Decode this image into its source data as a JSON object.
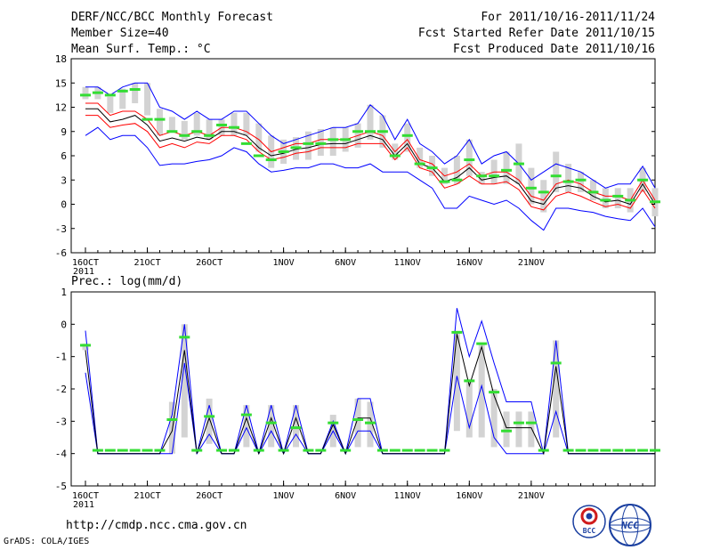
{
  "header": {
    "title": "DERF/NCC/BCC Monthly Forecast",
    "member_size": "Member Size=40",
    "variable": "Mean Surf. Temp.: °C",
    "forecast_period": "For 2011/10/16-2011/11/24",
    "fcst_started": "Fcst Started Refer Date 2011/10/15",
    "fcst_produced": "Fcst Produced Date 2011/10/16"
  },
  "precip_label": "Prec.: log(mm/d)",
  "footer": {
    "url": "http://cmdp.ncc.cma.gov.cn",
    "grads": "GrADS: COLA/IGES",
    "logo1_text": "BCC",
    "logo2_text": "NCC"
  },
  "colors": {
    "outer": "#0000ff",
    "inner": "#ff0000",
    "mean": "#000000",
    "obs": "#33dd33",
    "box": "#d3d3d3"
  },
  "chart_data": [
    {
      "type": "line",
      "title": "Mean Surf. Temp.: °C",
      "x_start_day": 16,
      "x_ticks": [
        "16OCT",
        "21OCT",
        "26OCT",
        "1NOV",
        "6NOV",
        "11NOV",
        "16NOV",
        "21NOV"
      ],
      "x_tick_days": [
        16,
        21,
        26,
        32,
        37,
        42,
        47,
        52
      ],
      "year_label": "2011",
      "ylim": [
        -6,
        18
      ],
      "y_ticks": [
        -6,
        -3,
        0,
        3,
        6,
        9,
        12,
        15,
        18
      ],
      "series": [
        {
          "name": "upper",
          "values": [
            14.5,
            14.5,
            13.5,
            14.5,
            15.0,
            15.0,
            12.0,
            11.5,
            10.5,
            11.5,
            10.5,
            10.5,
            11.5,
            11.5,
            10.0,
            8.5,
            7.5,
            8.0,
            8.5,
            9.0,
            9.5,
            9.5,
            10.0,
            12.3,
            11.0,
            8.0,
            10.5,
            7.5,
            6.5,
            5.0,
            6.0,
            8.0,
            5.0,
            6.0,
            6.5,
            5.0,
            3.0,
            4.0,
            5.0,
            4.5,
            4.0,
            3.0,
            2.0,
            2.5,
            2.5,
            4.7,
            2.0
          ]
        },
        {
          "name": "inner_upper",
          "values": [
            12.5,
            12.5,
            11.0,
            11.5,
            11.5,
            10.5,
            8.5,
            9.0,
            8.5,
            9.0,
            8.5,
            9.5,
            9.5,
            9.0,
            8.0,
            6.5,
            7.0,
            7.5,
            7.5,
            8.0,
            8.0,
            8.0,
            8.5,
            9.0,
            8.5,
            6.5,
            8.0,
            5.5,
            5.0,
            3.5,
            4.0,
            5.0,
            3.5,
            4.0,
            4.0,
            3.0,
            1.0,
            0.5,
            2.5,
            3.0,
            2.5,
            1.5,
            1.0,
            1.0,
            0.5,
            3.0,
            0.5
          ]
        },
        {
          "name": "mean",
          "values": [
            11.8,
            11.8,
            10.2,
            10.5,
            11.0,
            9.8,
            7.8,
            8.2,
            7.8,
            8.3,
            8.0,
            9.0,
            9.0,
            8.5,
            7.0,
            6.0,
            6.3,
            6.8,
            7.0,
            7.4,
            7.5,
            7.5,
            8.0,
            8.5,
            8.0,
            6.0,
            7.5,
            5.0,
            4.5,
            2.8,
            3.3,
            4.5,
            3.0,
            3.3,
            3.5,
            2.5,
            0.4,
            0.0,
            2.0,
            2.3,
            2.0,
            1.0,
            0.3,
            0.5,
            0.0,
            2.5,
            0.0
          ]
        },
        {
          "name": "inner_lower",
          "values": [
            11.0,
            11.0,
            9.5,
            9.8,
            10.0,
            9.0,
            7.0,
            7.5,
            7.0,
            7.7,
            7.5,
            8.5,
            8.5,
            8.0,
            6.5,
            5.5,
            5.8,
            6.3,
            6.5,
            7.0,
            7.0,
            7.0,
            7.5,
            7.5,
            7.5,
            5.5,
            7.0,
            4.5,
            4.0,
            2.0,
            2.5,
            3.5,
            2.5,
            2.5,
            2.8,
            1.8,
            -0.3,
            -0.7,
            1.0,
            1.5,
            1.0,
            0.3,
            -0.3,
            0.0,
            -0.5,
            1.8,
            -0.5
          ]
        },
        {
          "name": "lower",
          "values": [
            8.5,
            9.5,
            8.0,
            8.5,
            8.5,
            7.0,
            4.8,
            5.0,
            5.0,
            5.3,
            5.5,
            6.0,
            7.0,
            6.5,
            5.0,
            4.0,
            4.2,
            4.5,
            4.5,
            5.0,
            5.0,
            4.5,
            4.5,
            5.0,
            4.0,
            4.0,
            4.0,
            3.0,
            2.0,
            -0.5,
            -0.5,
            1.0,
            0.5,
            0.0,
            0.5,
            -0.5,
            -2.0,
            -3.2,
            -0.5,
            -0.5,
            -0.8,
            -1.0,
            -1.5,
            -1.8,
            -2.0,
            -0.5,
            -2.8
          ]
        },
        {
          "name": "box_top",
          "values": [
            14.5,
            14.5,
            13.3,
            14.3,
            15.0,
            15.0,
            11.8,
            10.8,
            10.3,
            11.3,
            10.5,
            10.5,
            11.3,
            11.3,
            10.0,
            8.5,
            8.0,
            8.3,
            9.0,
            9.3,
            9.5,
            9.5,
            10.0,
            12.3,
            11.0,
            7.5,
            10.0,
            7.0,
            6.0,
            4.5,
            6.0,
            8.0,
            4.0,
            5.5,
            6.5,
            7.5,
            4.5,
            3.0,
            6.5,
            5.0,
            4.0,
            3.0,
            2.0,
            2.0,
            2.0,
            4.5,
            2.0
          ]
        },
        {
          "name": "box_bottom",
          "values": [
            13.0,
            13.0,
            11.3,
            11.8,
            12.5,
            11.0,
            8.5,
            9.0,
            8.0,
            8.5,
            8.0,
            8.5,
            8.5,
            8.5,
            6.5,
            4.5,
            5.0,
            5.5,
            5.5,
            6.0,
            6.0,
            6.5,
            7.0,
            8.0,
            7.0,
            5.5,
            6.5,
            4.5,
            3.5,
            2.5,
            2.5,
            3.5,
            2.5,
            2.5,
            2.5,
            2.5,
            0.0,
            -1.0,
            1.5,
            1.5,
            1.5,
            0.5,
            -0.5,
            -0.5,
            -1.0,
            1.5,
            -1.5
          ]
        },
        {
          "name": "observed",
          "values": [
            13.5,
            13.8,
            13.5,
            14.0,
            14.2,
            10.5,
            10.5,
            9.0,
            8.5,
            9.0,
            8.5,
            9.8,
            9.5,
            7.5,
            6.0,
            5.5,
            6.5,
            7.0,
            7.5,
            7.5,
            8.0,
            8.0,
            9.0,
            9.0,
            9.0,
            6.0,
            8.5,
            5.0,
            4.5,
            2.8,
            3.0,
            5.5,
            3.5,
            3.5,
            4.2,
            5.0,
            2.0,
            1.5,
            3.5,
            2.8,
            3.0,
            1.5,
            0.5,
            1.0,
            0.5,
            3.0,
            0.3
          ]
        }
      ]
    },
    {
      "type": "line",
      "title": "Prec.: log(mm/d)",
      "x_start_day": 16,
      "x_ticks": [
        "16OCT",
        "21OCT",
        "26OCT",
        "1NOV",
        "6NOV",
        "11NOV",
        "16NOV",
        "21NOV"
      ],
      "x_tick_days": [
        16,
        21,
        26,
        32,
        37,
        42,
        47,
        52
      ],
      "year_label": "2011",
      "ylim": [
        -5,
        1
      ],
      "y_ticks": [
        -5,
        -4,
        -3,
        -2,
        -1,
        0,
        1
      ],
      "series": [
        {
          "name": "upper",
          "values": [
            -0.2,
            -4,
            -4,
            -4,
            -4,
            -4,
            -4,
            -2.8,
            0.0,
            -4,
            -2.5,
            -4,
            -4,
            -2.5,
            -4,
            -2.5,
            -4,
            -2.5,
            -4,
            -4,
            -3.0,
            -4,
            -2.3,
            -2.3,
            -4,
            -4,
            -4,
            -4,
            -4,
            -4,
            0.5,
            -1.0,
            0.1,
            -1.2,
            -2.4,
            -2.4,
            -2.4,
            -4,
            -0.5,
            -4,
            -4,
            -4,
            -4,
            -4,
            -4,
            -4,
            -4
          ]
        },
        {
          "name": "mean",
          "values": [
            -0.8,
            -4,
            -4,
            -4,
            -4,
            -4,
            -4,
            -3.3,
            -0.8,
            -4,
            -2.9,
            -4,
            -4,
            -2.9,
            -4,
            -2.9,
            -4,
            -2.9,
            -4,
            -4,
            -3.1,
            -4,
            -2.9,
            -2.9,
            -4,
            -4,
            -4,
            -4,
            -4,
            -4,
            -0.3,
            -1.9,
            -0.7,
            -2.2,
            -3.2,
            -3.2,
            -3.2,
            -4,
            -1.3,
            -4,
            -4,
            -4,
            -4,
            -4,
            -4,
            -4,
            -4
          ]
        },
        {
          "name": "lower",
          "values": [
            -1.5,
            -4,
            -4,
            -4,
            -4,
            -4,
            -4,
            -4.0,
            -1.2,
            -4,
            -3.4,
            -4,
            -4,
            -3.2,
            -4,
            -3.3,
            -4,
            -3.4,
            -4,
            -4,
            -3.3,
            -4,
            -3.3,
            -3.3,
            -4,
            -4,
            -4,
            -4,
            -4,
            -4,
            -1.6,
            -3.2,
            -1.9,
            -3.5,
            -4,
            -4,
            -4,
            -4,
            -2.7,
            -4,
            -4,
            -4,
            -4,
            -4,
            -4,
            -4,
            -4
          ]
        },
        {
          "name": "box_top",
          "values": [
            -0.6,
            -4,
            -4,
            -4,
            -4,
            -4,
            -4,
            -2.4,
            0.0,
            -4,
            -2.3,
            -4,
            -4,
            -2.5,
            -4,
            -2.5,
            -4,
            -2.5,
            -4,
            -4,
            -2.8,
            -4,
            -2.3,
            -2.4,
            -4,
            -4,
            -4,
            -4,
            -4,
            -4,
            -0.2,
            -1.7,
            -0.6,
            -2.0,
            -2.7,
            -2.7,
            -2.7,
            -4,
            -0.5,
            -4,
            -4,
            -4,
            -4,
            -4,
            -4,
            -4,
            -4
          ]
        },
        {
          "name": "box_bottom",
          "values": [
            -0.8,
            -4,
            -4,
            -4,
            -4,
            -4,
            -4,
            -4.0,
            -3.5,
            -4,
            -3.7,
            -4,
            -4,
            -3.8,
            -4,
            -3.8,
            -4,
            -3.8,
            -4,
            -4,
            -3.8,
            -4,
            -3.8,
            -3.8,
            -4,
            -4,
            -4,
            -4,
            -4,
            -4,
            -3.3,
            -3.5,
            -3.5,
            -3.8,
            -3.8,
            -3.8,
            -3.8,
            -4,
            -3.5,
            -4,
            -4,
            -4,
            -4,
            -4,
            -4,
            -4,
            -4
          ]
        },
        {
          "name": "observed",
          "values": [
            -0.65,
            -3.9,
            -3.9,
            -3.9,
            -3.9,
            -3.9,
            -3.9,
            -2.95,
            -0.4,
            -3.9,
            -2.85,
            -3.9,
            -3.9,
            -2.8,
            -3.9,
            -3.05,
            -3.9,
            -3.2,
            -3.9,
            -3.9,
            -3.05,
            -3.9,
            -2.95,
            -3.05,
            -3.9,
            -3.9,
            -3.9,
            -3.9,
            -3.9,
            -3.9,
            -0.25,
            -1.75,
            -0.6,
            -2.1,
            -3.3,
            -3.05,
            -3.05,
            -3.9,
            -1.2,
            -3.9,
            -3.9,
            -3.9,
            -3.9,
            -3.9,
            -3.9,
            -3.9,
            -3.9
          ]
        }
      ]
    }
  ]
}
